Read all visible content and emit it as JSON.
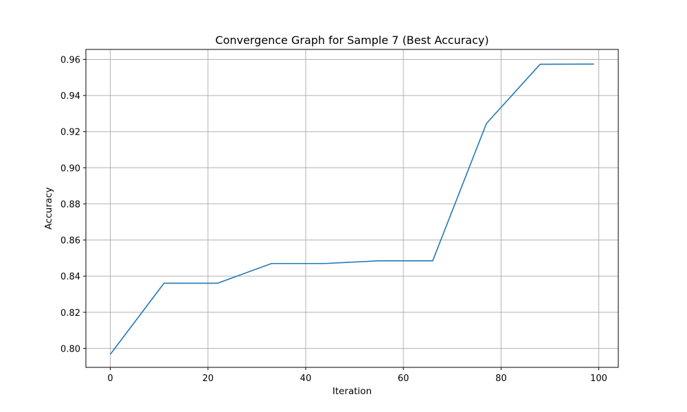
{
  "chart_data": {
    "type": "line",
    "title": "Convergence Graph for Sample 7 (Best Accuracy)",
    "xlabel": "Iteration",
    "ylabel": "Accuracy",
    "xlim": [
      -5,
      104
    ],
    "ylim": [
      0.7895,
      0.9655
    ],
    "xticks": [
      0,
      20,
      40,
      60,
      80,
      100
    ],
    "xtick_labels": [
      "0",
      "20",
      "40",
      "60",
      "80",
      "100"
    ],
    "yticks": [
      0.8,
      0.82,
      0.84,
      0.86,
      0.88,
      0.9,
      0.92,
      0.94,
      0.96
    ],
    "ytick_labels": [
      "0.80",
      "0.82",
      "0.84",
      "0.86",
      "0.88",
      "0.90",
      "0.92",
      "0.94",
      "0.96"
    ],
    "grid": true,
    "series": [
      {
        "name": "Accuracy",
        "color": "#1f77b4",
        "x": [
          0,
          11,
          22,
          33,
          44,
          55,
          66,
          77,
          88,
          99
        ],
        "y": [
          0.7967,
          0.8361,
          0.8361,
          0.847,
          0.847,
          0.8485,
          0.8485,
          0.9245,
          0.9573,
          0.9574
        ]
      }
    ],
    "colors": {
      "grid": "#b0b0b0",
      "axes": "#000000",
      "line": "#1f77b4"
    }
  }
}
